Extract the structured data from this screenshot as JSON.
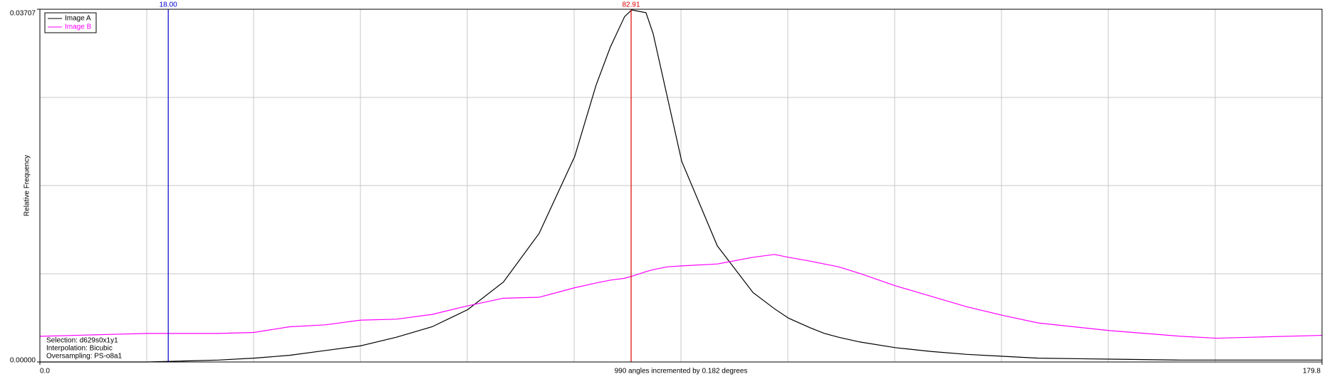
{
  "chart_data": {
    "type": "line",
    "xlabel": "990 angles incremented by 0.182 degrees",
    "ylabel": "Relative Frequency",
    "x": [
      0,
      5,
      10,
      15,
      20,
      25,
      30,
      35,
      40,
      45,
      50,
      55,
      60,
      65,
      70,
      75,
      78,
      80,
      82,
      83,
      85,
      86,
      88,
      90,
      95,
      100,
      103,
      105,
      108,
      110,
      112,
      115,
      120,
      125,
      130,
      135,
      140,
      150,
      160,
      165,
      170,
      179.8
    ],
    "series": [
      {
        "name": "Image A",
        "color": "#000000",
        "values": [
          0,
          0,
          0,
          0,
          0.0001,
          0.0002,
          0.0004,
          0.0007,
          0.0012,
          0.0017,
          0.0026,
          0.0037,
          0.0055,
          0.0084,
          0.0135,
          0.0216,
          0.0291,
          0.0331,
          0.0363,
          0.037,
          0.0367,
          0.0345,
          0.0278,
          0.0211,
          0.0122,
          0.0073,
          0.0056,
          0.0046,
          0.0036,
          0.003,
          0.0026,
          0.0021,
          0.0015,
          0.0011,
          0.0008,
          0.0006,
          0.0004,
          0.0003,
          0.0002,
          0.0002,
          0.0002,
          0.0002
        ]
      },
      {
        "name": "Image B",
        "color": "#ff00ff",
        "values": [
          0.0027,
          0.0028,
          0.0029,
          0.003,
          0.003,
          0.003,
          0.0031,
          0.0037,
          0.0039,
          0.0044,
          0.0045,
          0.005,
          0.0059,
          0.0067,
          0.0068,
          0.0078,
          0.0083,
          0.0086,
          0.0088,
          0.009,
          0.0095,
          0.0097,
          0.01,
          0.0101,
          0.0103,
          0.011,
          0.0113,
          0.011,
          0.0106,
          0.0103,
          0.01,
          0.0093,
          0.008,
          0.0069,
          0.0058,
          0.0049,
          0.0041,
          0.0033,
          0.0027,
          0.0025,
          0.0026,
          0.0028
        ]
      }
    ],
    "xlim": [
      0,
      179.8
    ],
    "ylim": [
      0,
      0.03707
    ],
    "xticks": [
      {
        "value": 0,
        "label": "0.0"
      },
      179.8
    ],
    "yticks": [
      {
        "value": 0,
        "label": "0.00000"
      },
      0.03707
    ],
    "xgrid": [
      14.98,
      29.97,
      44.95,
      59.93,
      74.92,
      89.9,
      104.88,
      119.87,
      134.85,
      149.83,
      164.82
    ],
    "ygrid": [
      0.00927,
      0.01854,
      0.0278
    ],
    "grid": true,
    "legend": "upper left",
    "cursors": [
      {
        "value": 18,
        "label": "18.00",
        "color": "#0000cc"
      },
      {
        "value": 82.91,
        "label": "82.91",
        "color": "#dd0000"
      }
    ],
    "annotations": [
      "Selection: d629s0x1y1",
      "Interpolation: Bicubic",
      "Oversampling: PS-o8a1"
    ]
  }
}
